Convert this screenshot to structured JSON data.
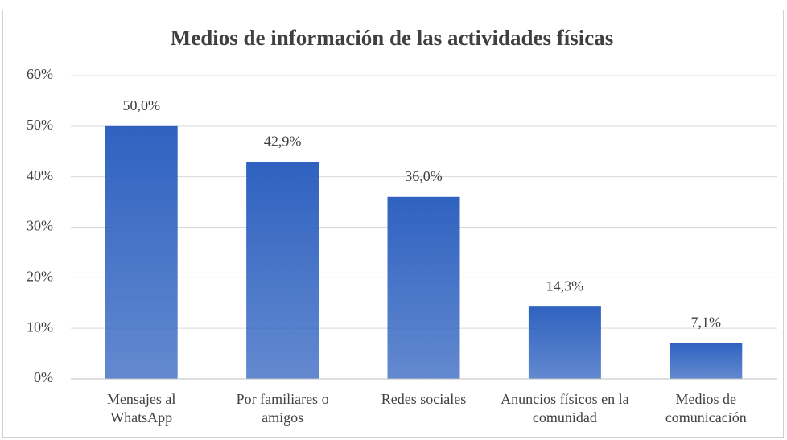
{
  "chart_data": {
    "type": "bar",
    "title": "Medios de información de las actividades físicas",
    "categories": [
      "Mensajes al WhatsApp",
      "Por familiares o amigos",
      "Redes sociales",
      "Anuncios físicos en la comunidad",
      "Medios de comunicación"
    ],
    "values": [
      50,
      42.9,
      36,
      14.3,
      7.1
    ],
    "value_labels": [
      "50,0%",
      "42,9%",
      "36,0%",
      "14,3%",
      "7,1%"
    ],
    "color": "#2f62c0",
    "ylim": [
      0,
      60
    ],
    "yticks": [
      {
        "value": 0,
        "label": "0%"
      },
      {
        "value": 10,
        "label": "10%"
      },
      {
        "value": 20,
        "label": "20%"
      },
      {
        "value": 30,
        "label": "30%"
      },
      {
        "value": 40,
        "label": "40%"
      },
      {
        "value": 50,
        "label": "50%"
      },
      {
        "value": 60,
        "label": "60%"
      }
    ],
    "grid": true
  }
}
